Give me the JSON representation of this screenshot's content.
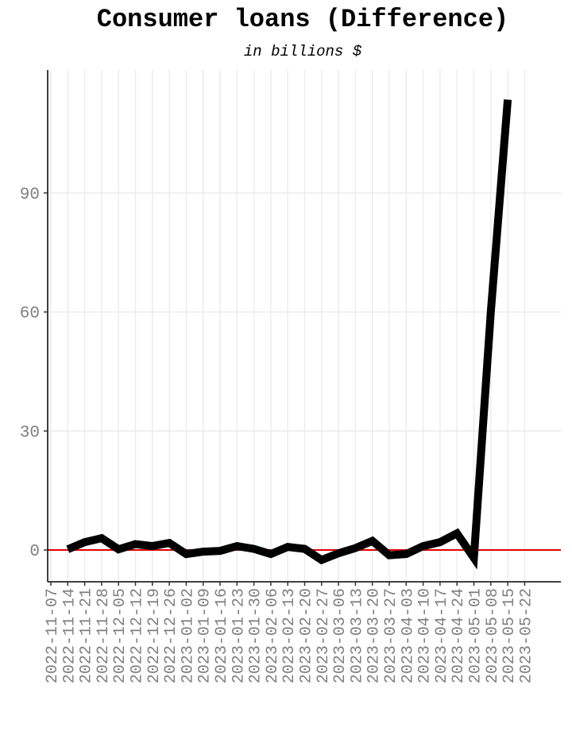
{
  "chart_data": {
    "type": "line",
    "title": "Consumer loans (Difference)",
    "subtitle": "in billions $",
    "xlabel": "",
    "ylabel": "",
    "ylim": [
      -8,
      121
    ],
    "yticks": [
      0,
      30,
      60,
      90
    ],
    "x": [
      "2022-11-07",
      "2022-11-14",
      "2022-11-21",
      "2022-11-28",
      "2022-12-05",
      "2022-12-12",
      "2022-12-19",
      "2022-12-26",
      "2023-01-02",
      "2023-01-09",
      "2023-01-16",
      "2023-01-23",
      "2023-01-30",
      "2023-02-06",
      "2023-02-13",
      "2023-02-20",
      "2023-02-27",
      "2023-03-06",
      "2023-03-13",
      "2023-03-20",
      "2023-03-27",
      "2023-04-03",
      "2023-04-10",
      "2023-04-17",
      "2023-04-24",
      "2023-05-01",
      "2023-05-08",
      "2023-05-15",
      "2023-05-22"
    ],
    "series": [
      {
        "values": [
          null,
          0.2,
          2.0,
          3.0,
          0.2,
          1.5,
          1.0,
          1.8,
          -1.0,
          -0.4,
          -0.2,
          1.0,
          0.3,
          -1.0,
          0.8,
          0.3,
          -2.5,
          -0.8,
          0.5,
          2.3,
          -1.3,
          -1.0,
          1.0,
          2.0,
          4.2,
          -2.0,
          60.0,
          113.5,
          null
        ],
        "color": "#000000"
      }
    ],
    "reference_line": {
      "y": 0,
      "color": "#e00000"
    },
    "grid": true
  }
}
